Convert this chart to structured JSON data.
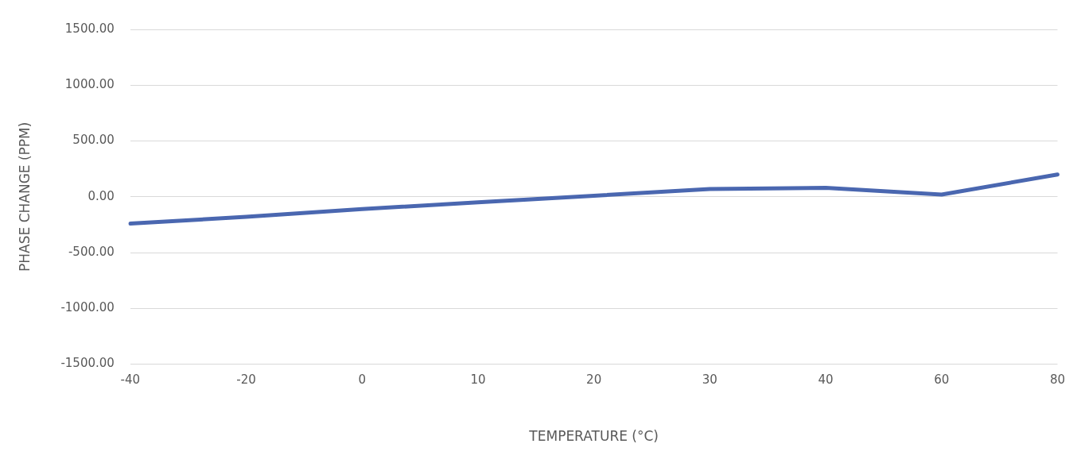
{
  "chart_data": {
    "type": "line",
    "xlabel": "TEMPERATURE (°C)",
    "ylabel": "PHASE CHANGE (PPM)",
    "categories": [
      "-40",
      "-20",
      "0",
      "10",
      "20",
      "30",
      "40",
      "60",
      "80"
    ],
    "series": [
      {
        "color": "#4a67b0",
        "values": [
          -240,
          -180,
          -110,
          -50,
          10,
          70,
          80,
          20,
          200
        ]
      }
    ],
    "ylim": [
      -1500,
      1500
    ],
    "yticks": [
      {
        "value": -1500,
        "label": "-1500.00"
      },
      {
        "value": -1000,
        "label": "-1000.00"
      },
      {
        "value": -500,
        "label": "-500.00"
      },
      {
        "value": 0,
        "label": "0.00"
      },
      {
        "value": 500,
        "label": "500.00"
      },
      {
        "value": 1000,
        "label": "1000.00"
      },
      {
        "value": 1500,
        "label": "1500.00"
      }
    ],
    "grid": "y",
    "legend": false,
    "marker": "none",
    "line_style": "solid"
  }
}
